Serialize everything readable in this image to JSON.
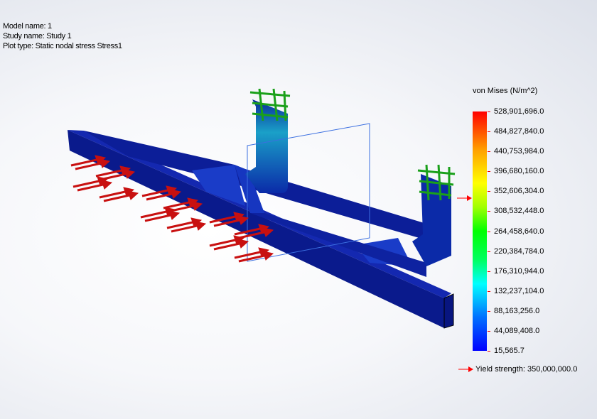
{
  "info": {
    "model_name": "Model name: 1",
    "study_name": "Study name: Study 1",
    "plot_type": "Plot type: Static nodal stress Stress1"
  },
  "legend": {
    "title": "von Mises (N/m^2)",
    "labels": [
      "528,901,696.0",
      "484,827,840.0",
      "440,753,984.0",
      "396,680,160.0",
      "352,606,304.0",
      "308,532,448.0",
      "264,458,640.0",
      "220,384,784.0",
      "176,310,944.0",
      "132,237,104.0",
      "88,163,256.0",
      "44,089,408.0",
      "15,565.7"
    ],
    "max": 528901696.0,
    "min": 15565.7,
    "colormap": [
      "#0000ff",
      "#00ffff",
      "#00ff00",
      "#ffff00",
      "#ff0000"
    ],
    "yield_label": "Yield strength: 350,000,000.0",
    "yield_value": 350000000.0,
    "marker_color": "#ff0000"
  },
  "model": {
    "body_color": "#0a1f9a",
    "load_color": "#c81010",
    "fixture_color": "#1aa01a",
    "plane_color": "#3b6fe0"
  }
}
